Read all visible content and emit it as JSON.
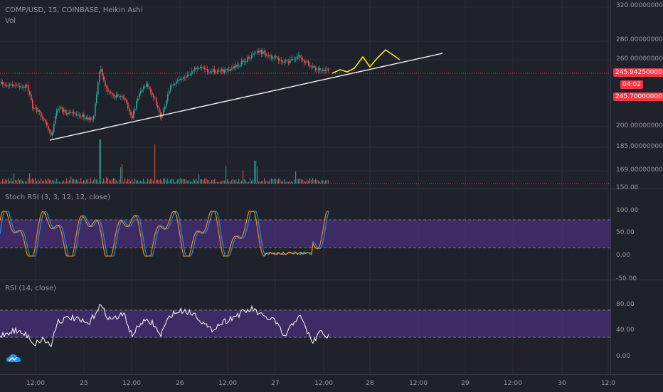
{
  "header": {
    "symbol_line": "COMP/USD, 15, COINBASE, Heikin Ashi",
    "vol_label": "Vol"
  },
  "indicators": {
    "stoch_label": "Stoch RSI (3, 3, 12, 12, close)",
    "rsi_label": "RSI (14, close)"
  },
  "price_axis": {
    "ticks": [
      {
        "label": "320.00000000",
        "value": 320
      },
      {
        "label": "280.00000000",
        "value": 280
      },
      {
        "label": "260.00000000",
        "value": 260
      },
      {
        "label": "200.00000000",
        "value": 200
      },
      {
        "label": "185.00000000",
        "value": 185
      },
      {
        "label": "169.00000000",
        "value": 169
      },
      {
        "label": "150.00",
        "value": 150
      }
    ]
  },
  "price_tags": {
    "current_price": "245.94250000",
    "countdown": "04:02",
    "prev_price": "245.70000000"
  },
  "stoch_axis": {
    "ticks": [
      "100.00",
      "50.00",
      "0.00",
      "-50.00"
    ]
  },
  "rsi_axis": {
    "ticks": [
      "80.00",
      "40.00",
      "0.00"
    ]
  },
  "time_axis": {
    "ticks": [
      "12:00",
      "25",
      "12:00",
      "26",
      "12:00",
      "27",
      "12:00",
      "28",
      "12:00",
      "29",
      "12:00",
      "30",
      "12:0"
    ]
  },
  "colors": {
    "bull": "#26a69a",
    "bear": "#ef5350",
    "trendline": "#ffffff",
    "projection": "#f5e71e",
    "stoch_k": "#2196f3",
    "stoch_d": "#ff9800",
    "rsi_line": "#ffffff",
    "band_fill": "#4a2f7a",
    "price_line": "#f23645"
  },
  "logo": {
    "icon": "tradingview-cloud-icon"
  }
}
